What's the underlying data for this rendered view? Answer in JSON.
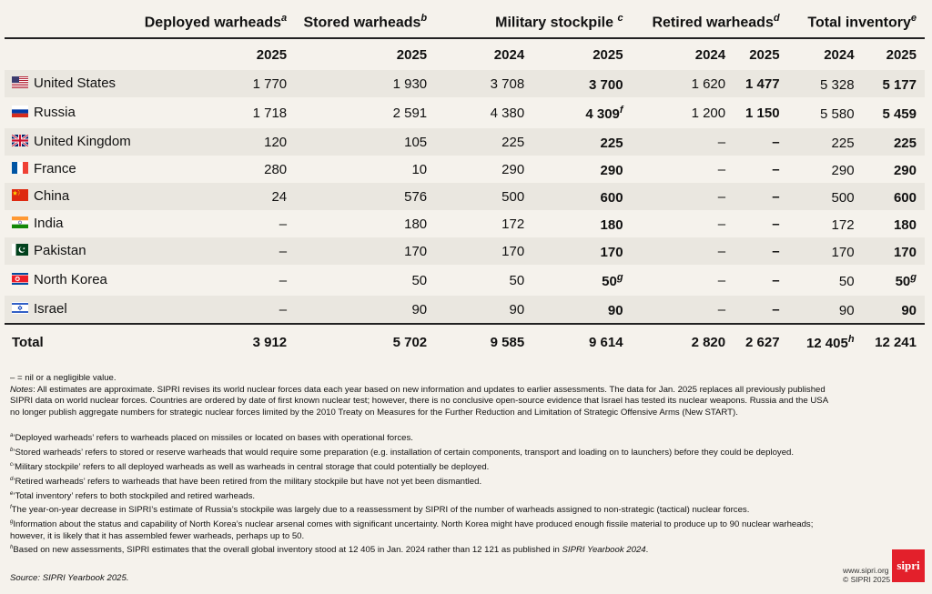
{
  "headers": {
    "deployed": "Deployed warheads",
    "deployed_sup": "a",
    "stored": "Stored warheads",
    "stored_sup": "b",
    "military": "Military stockpile",
    "military_sup": "c",
    "retired": "Retired warheads",
    "retired_sup": "d",
    "total": "Total inventory",
    "total_sup": "e",
    "years": [
      "2025",
      "2025",
      "2024",
      "2025",
      "2024",
      "2025",
      "2024",
      "2025"
    ]
  },
  "rows": [
    {
      "country": "United States",
      "flag": "us-flag-icon",
      "deployed": "1 770",
      "stored": "1 930",
      "mil2024": "3 708",
      "mil2025": "3 700",
      "mil2025_sup": "",
      "ret2024": "1 620",
      "ret2025": "1 477",
      "tot2024": "5 328",
      "tot2024_sup": "",
      "tot2025": "5 177",
      "tot2025_sup": ""
    },
    {
      "country": "Russia",
      "flag": "russia-flag-icon",
      "deployed": "1 718",
      "stored": "2 591",
      "mil2024": "4 380",
      "mil2025": "4 309",
      "mil2025_sup": "f",
      "ret2024": "1 200",
      "ret2025": "1 150",
      "tot2024": "5 580",
      "tot2024_sup": "",
      "tot2025": "5 459",
      "tot2025_sup": ""
    },
    {
      "country": "United Kingdom",
      "flag": "uk-flag-icon",
      "deployed": "120",
      "stored": "105",
      "mil2024": "225",
      "mil2025": "225",
      "mil2025_sup": "",
      "ret2024": "–",
      "ret2025": "–",
      "tot2024": "225",
      "tot2024_sup": "",
      "tot2025": "225",
      "tot2025_sup": ""
    },
    {
      "country": "France",
      "flag": "france-flag-icon",
      "deployed": "280",
      "stored": "10",
      "mil2024": "290",
      "mil2025": "290",
      "mil2025_sup": "",
      "ret2024": "–",
      "ret2025": "–",
      "tot2024": "290",
      "tot2024_sup": "",
      "tot2025": "290",
      "tot2025_sup": ""
    },
    {
      "country": "China",
      "flag": "china-flag-icon",
      "deployed": "24",
      "stored": "576",
      "mil2024": "500",
      "mil2025": "600",
      "mil2025_sup": "",
      "ret2024": "–",
      "ret2025": "–",
      "tot2024": "500",
      "tot2024_sup": "",
      "tot2025": "600",
      "tot2025_sup": ""
    },
    {
      "country": "India",
      "flag": "india-flag-icon",
      "deployed": "–",
      "stored": "180",
      "mil2024": "172",
      "mil2025": "180",
      "mil2025_sup": "",
      "ret2024": "–",
      "ret2025": "–",
      "tot2024": "172",
      "tot2024_sup": "",
      "tot2025": "180",
      "tot2025_sup": ""
    },
    {
      "country": "Pakistan",
      "flag": "pakistan-flag-icon",
      "deployed": "–",
      "stored": "170",
      "mil2024": "170",
      "mil2025": "170",
      "mil2025_sup": "",
      "ret2024": "–",
      "ret2025": "–",
      "tot2024": "170",
      "tot2024_sup": "",
      "tot2025": "170",
      "tot2025_sup": ""
    },
    {
      "country": "North Korea",
      "flag": "north-korea-flag-icon",
      "deployed": "–",
      "stored": "50",
      "mil2024": "50",
      "mil2025": "50",
      "mil2025_sup": "g",
      "ret2024": "–",
      "ret2025": "–",
      "tot2024": "50",
      "tot2024_sup": "",
      "tot2025": "50",
      "tot2025_sup": "g"
    },
    {
      "country": "Israel",
      "flag": "israel-flag-icon",
      "deployed": "–",
      "stored": "90",
      "mil2024": "90",
      "mil2025": "90",
      "mil2025_sup": "",
      "ret2024": "–",
      "ret2025": "–",
      "tot2024": "90",
      "tot2024_sup": "",
      "tot2025": "90",
      "tot2025_sup": ""
    }
  ],
  "total": {
    "label": "Total",
    "deployed": "3 912",
    "stored": "5 702",
    "mil2024": "9 585",
    "mil2025": "9 614",
    "ret2024": "2 820",
    "ret2025": "2 627",
    "tot2024": "12 405",
    "tot2024_sup": "h",
    "tot2025": "12 241"
  },
  "notes": {
    "nil": "– = nil or a negligible value.",
    "notes_label": "Notes",
    "notes_text": ": All estimates are approximate. SIPRI revises its world nuclear forces data each year based on new information and updates to earlier assessments. The data for Jan. 2025 replaces all previously published SIPRI data on world nuclear forces. Countries are ordered by date of first known nuclear test; however, there is no conclusive open-source evidence that Israel has tested its nuclear weapons. Russia and the USA no longer publish aggregate numbers for strategic nuclear forces limited by the 2010 Treaty on Measures for the Further Reduction and Limitation of Strategic Offensive Arms (New START).",
    "footnotes": [
      {
        "mark": "a",
        "text": "‘Deployed warheads’ refers to warheads placed on missiles or located on bases with operational forces."
      },
      {
        "mark": "b",
        "text": "‘Stored warheads’ refers to stored or reserve warheads that would require some preparation (e.g. installation of certain components, transport and loading on to launchers) before they could be deployed."
      },
      {
        "mark": "c",
        "text": "‘Military stockpile’ refers to all deployed warheads as well as warheads in central storage that could potentially be deployed."
      },
      {
        "mark": "d",
        "text": "‘Retired warheads’ refers to warheads that have been retired from the military stockpile but have not yet been dismantled."
      },
      {
        "mark": "e",
        "text": "‘Total inventory’ refers to both stockpiled and retired warheads."
      },
      {
        "mark": "f",
        "text": "The year-on-year decrease in SIPRI’s estimate of Russia’s stockpile was largely due to a reassessment by SIPRI of the number of warheads assigned to non-strategic (tactical) nuclear forces."
      },
      {
        "mark": "g",
        "text": "Information about the status and capability of North Korea’s nuclear arsenal comes with significant uncertainty. North Korea might have produced enough fissile material to produce up to 90 nuclear warheads; however, it is likely that it has assembled fewer warheads, perhaps up to 50."
      }
    ],
    "h_mark": "h",
    "h_text": "Based on new assessments, SIPRI estimates that the overall global inventory stood at 12 405 in Jan. 2024 rather than 12 121 as published in ",
    "h_italic": "SIPRI Yearbook 2024",
    "h_end": "."
  },
  "source": "Source: SIPRI Yearbook 2025.",
  "site_url": "www.sipri.org",
  "copyright": "© SIPRI 2025",
  "logo_text": "sipri",
  "colors": {
    "background": "#f5f2ec",
    "row_stripe": "#eae7e0",
    "logo_red": "#e3202b"
  }
}
